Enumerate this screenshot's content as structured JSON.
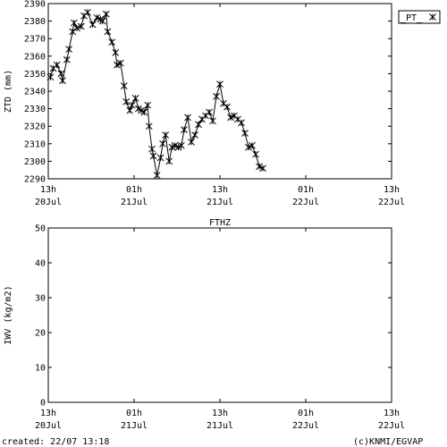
{
  "chart_data": [
    {
      "type": "line",
      "ylabel": "ZTD (mm)",
      "ylim": [
        2290,
        2390
      ],
      "yticks": [
        2290,
        2300,
        2310,
        2320,
        2330,
        2340,
        2350,
        2360,
        2370,
        2380,
        2390
      ],
      "xlim": [
        0,
        48
      ],
      "x_unit": "hours since 20 Jul 13h",
      "xticks": [
        {
          "pos": 0,
          "hour": "13h",
          "date": "20Jul"
        },
        {
          "pos": 12,
          "hour": "01h",
          "date": "21Jul"
        },
        {
          "pos": 24,
          "hour": "13h",
          "date": "21Jul"
        },
        {
          "pos": 36,
          "hour": "01h",
          "date": "22Jul"
        },
        {
          "pos": 48,
          "hour": "13h",
          "date": "22Jul"
        }
      ],
      "legend_position": "top-right",
      "grid": false,
      "series": [
        {
          "name": "_PT_",
          "marker": "x-star",
          "color": "#000000",
          "points": [
            [
              0.3,
              2348
            ],
            [
              0.7,
              2353
            ],
            [
              1.2,
              2355
            ],
            [
              1.8,
              2350
            ],
            [
              2.0,
              2346
            ],
            [
              2.6,
              2358
            ],
            [
              2.9,
              2364
            ],
            [
              3.4,
              2374
            ],
            [
              3.6,
              2379
            ],
            [
              4.0,
              2376
            ],
            [
              4.6,
              2377
            ],
            [
              5.0,
              2383
            ],
            [
              5.5,
              2385
            ],
            [
              6.2,
              2378
            ],
            [
              6.8,
              2382
            ],
            [
              7.3,
              2381
            ],
            [
              7.6,
              2380
            ],
            [
              8.1,
              2384
            ],
            [
              8.3,
              2374
            ],
            [
              8.9,
              2368
            ],
            [
              9.4,
              2362
            ],
            [
              9.6,
              2355
            ],
            [
              10.1,
              2356
            ],
            [
              10.6,
              2343
            ],
            [
              10.9,
              2334
            ],
            [
              11.4,
              2329
            ],
            [
              11.7,
              2332
            ],
            [
              12.2,
              2336
            ],
            [
              12.6,
              2330
            ],
            [
              13.0,
              2329
            ],
            [
              13.4,
              2328
            ],
            [
              13.9,
              2332
            ],
            [
              14.1,
              2320
            ],
            [
              14.5,
              2307
            ],
            [
              14.7,
              2303
            ],
            [
              15.2,
              2292
            ],
            [
              15.7,
              2302
            ],
            [
              16.0,
              2310
            ],
            [
              16.4,
              2315
            ],
            [
              16.9,
              2300
            ],
            [
              17.3,
              2308
            ],
            [
              17.7,
              2309
            ],
            [
              18.2,
              2308
            ],
            [
              18.6,
              2309
            ],
            [
              19.0,
              2318
            ],
            [
              19.5,
              2325
            ],
            [
              20.0,
              2311
            ],
            [
              20.5,
              2315
            ],
            [
              21.0,
              2321
            ],
            [
              21.5,
              2324
            ],
            [
              22.0,
              2326
            ],
            [
              22.5,
              2328
            ],
            [
              23.0,
              2323
            ],
            [
              23.5,
              2337
            ],
            [
              24.0,
              2344
            ],
            [
              24.5,
              2333
            ],
            [
              25.0,
              2331
            ],
            [
              25.5,
              2325
            ],
            [
              26.0,
              2326
            ],
            [
              26.5,
              2324
            ],
            [
              27.0,
              2322
            ],
            [
              27.5,
              2316
            ],
            [
              28.0,
              2308
            ],
            [
              28.5,
              2309
            ],
            [
              29.0,
              2304
            ],
            [
              29.5,
              2297
            ],
            [
              30.0,
              2296
            ]
          ]
        }
      ]
    },
    {
      "type": "line",
      "title": "FTHZ",
      "ylabel": "IWV (kg/m2)",
      "ylim": [
        0,
        50
      ],
      "yticks": [
        0,
        10,
        20,
        30,
        40,
        50
      ],
      "xlim": [
        0,
        48
      ],
      "xticks": [
        {
          "pos": 0,
          "hour": "13h",
          "date": "20Jul"
        },
        {
          "pos": 12,
          "hour": "01h",
          "date": "21Jul"
        },
        {
          "pos": 24,
          "hour": "13h",
          "date": "21Jul"
        },
        {
          "pos": 36,
          "hour": "01h",
          "date": "22Jul"
        },
        {
          "pos": 48,
          "hour": "13h",
          "date": "22Jul"
        }
      ],
      "grid": false,
      "series": []
    }
  ],
  "footer": {
    "created": "created: 22/07 13:18",
    "credit": "(c)KNMI/EGVAP"
  }
}
